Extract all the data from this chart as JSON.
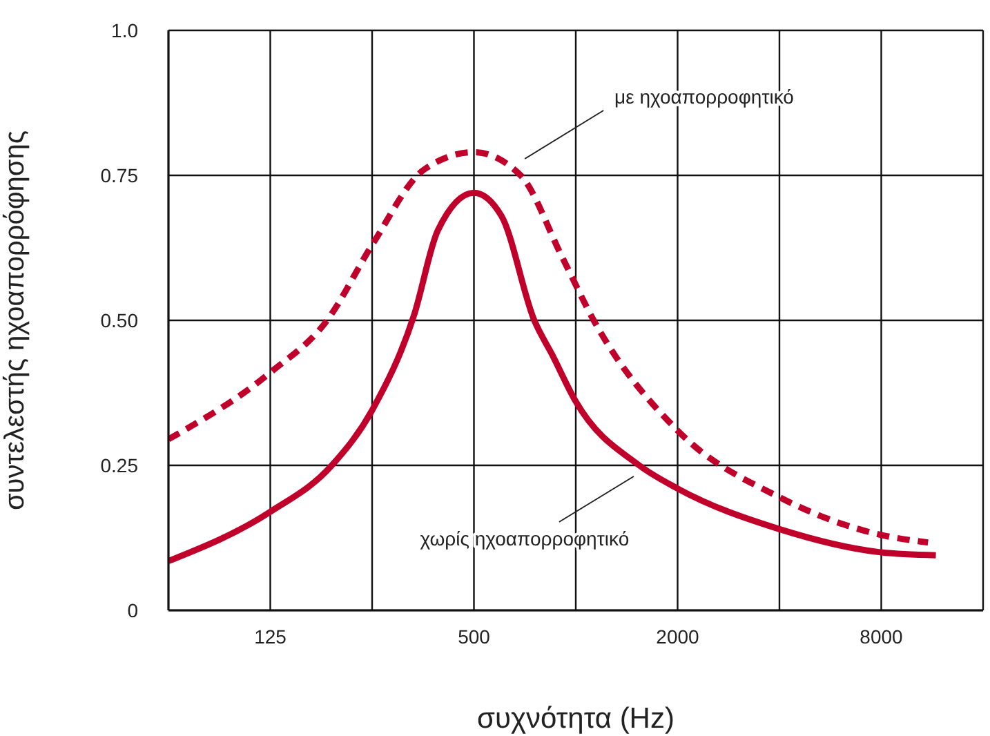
{
  "chart_data": {
    "type": "line",
    "xlabel": "συχνότητα (Hz)",
    "ylabel": "συντελεστής ηχοαπορρόφησης",
    "log": "x",
    "grid": true,
    "marker": "none",
    "xlim": [
      62.5,
      16000
    ],
    "xticks": [
      {
        "value": 125,
        "label": "125"
      },
      {
        "value": 250,
        "label": null
      },
      500,
      {
        "value": 1000,
        "label": null
      },
      2000,
      {
        "value": 4000,
        "label": null
      },
      8000
    ],
    "ylim": [
      0,
      1
    ],
    "yticks": [
      0,
      0.25,
      {
        "value": 0.5,
        "label": "0.50"
      },
      0.75,
      {
        "value": 1,
        "label": "1.0"
      }
    ],
    "series": [
      {
        "name": "με ηχοαπορροφητικό",
        "color": "#c0002a",
        "line_style": "dashed",
        "x": [
          62.5,
          125,
          184,
          250,
          356,
          500,
          687,
          910,
          1130,
          2000,
          4000,
          8000,
          11000
        ],
        "values": [
          0.295,
          0.41,
          0.5,
          0.63,
          0.76,
          0.79,
          0.75,
          0.61,
          0.5,
          0.31,
          0.195,
          0.13,
          0.117
        ]
      },
      {
        "name": "χωρίς ηχοαπορροφητικό",
        "color": "#c0002a",
        "line_style": "solid",
        "x": [
          62.5,
          125,
          190,
          250,
          333,
          391,
          500,
          603,
          754,
          853,
          1000,
          1540,
          2000,
          4000,
          8000,
          11600
        ],
        "values": [
          0.085,
          0.17,
          0.25,
          0.345,
          0.51,
          0.655,
          0.72,
          0.68,
          0.5,
          0.44,
          0.36,
          0.25,
          0.21,
          0.14,
          0.1,
          0.095
        ]
      }
    ]
  }
}
